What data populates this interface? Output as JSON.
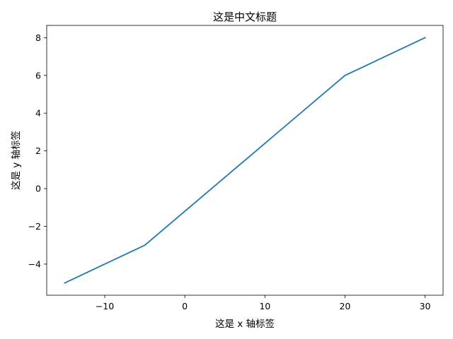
{
  "chart_data": {
    "type": "line",
    "title": "这是中文标题",
    "xlabel": "这是 x 轴标签",
    "ylabel": "这是 y 轴标签",
    "xlim": [
      -17.25,
      32.25
    ],
    "ylim": [
      -5.65,
      8.65
    ],
    "x_ticks": [
      -10,
      0,
      10,
      20,
      30
    ],
    "y_ticks": [
      -4,
      -2,
      0,
      2,
      4,
      6,
      8
    ],
    "x_tick_labels": [
      "−10",
      "0",
      "10",
      "20",
      "30"
    ],
    "y_tick_labels": [
      "−4",
      "−2",
      "0",
      "2",
      "4",
      "6",
      "8"
    ],
    "grid": false,
    "series": [
      {
        "color": "#1f77b4",
        "x": [
          -15,
          -5,
          20,
          30
        ],
        "y": [
          -5,
          -3,
          6,
          8
        ]
      }
    ]
  }
}
